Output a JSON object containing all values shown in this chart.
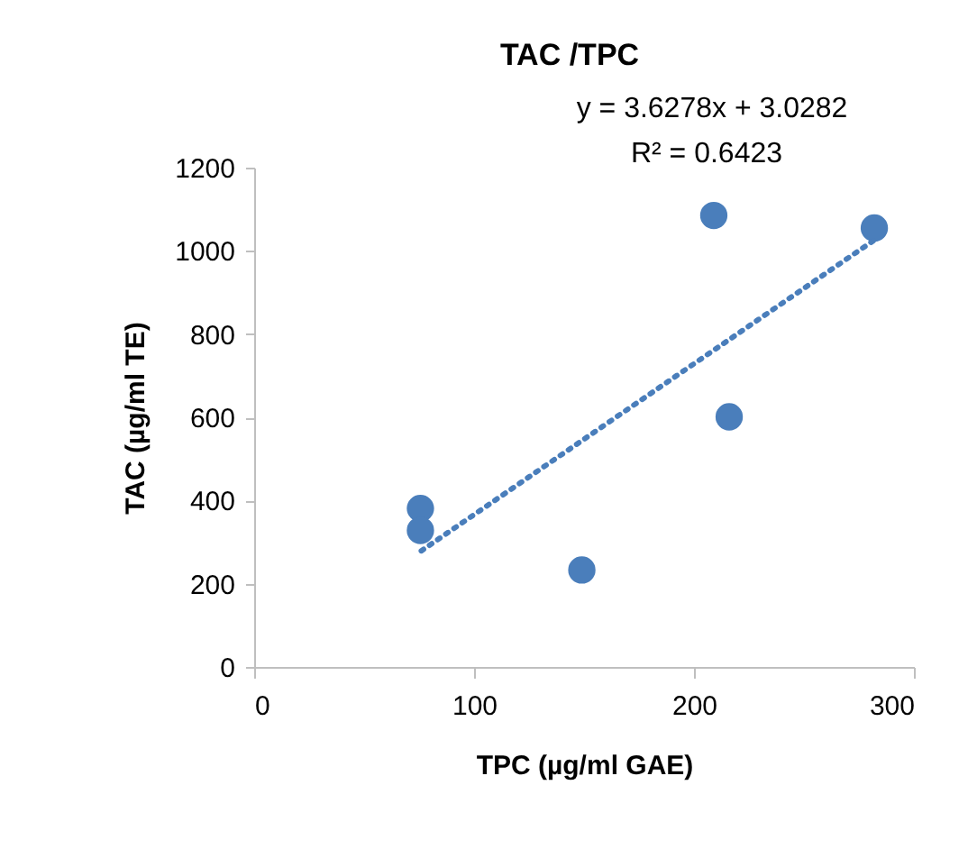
{
  "chart_data": {
    "type": "scatter",
    "title": "TAC /TPC",
    "xlabel": "TPC (µg/ml GAE)",
    "ylabel": "TAC (µg/ml TE)",
    "annotations": [
      "y = 3.6278x + 3.0282",
      "R² = 0.6423"
    ],
    "xlim": [
      0,
      300
    ],
    "xticks": [
      0,
      100,
      200,
      300
    ],
    "ylim": [
      0,
      1200
    ],
    "yticks": [
      0,
      200,
      400,
      600,
      800,
      1000,
      1200
    ],
    "grid": false,
    "marker": "circle",
    "series": [
      {
        "color": "#4a7ebb",
        "x": [
          75.6,
          75.6,
          149,
          209,
          216,
          282
        ],
        "values": [
          381,
          328,
          233,
          1085,
          601,
          1055
        ]
      },
      {
        "type": "line",
        "color": "#4a7ebb",
        "line_style": "dotted",
        "marker": "none",
        "x": [
          76,
          282
        ],
        "values": [
          279,
          1026
        ]
      }
    ]
  }
}
